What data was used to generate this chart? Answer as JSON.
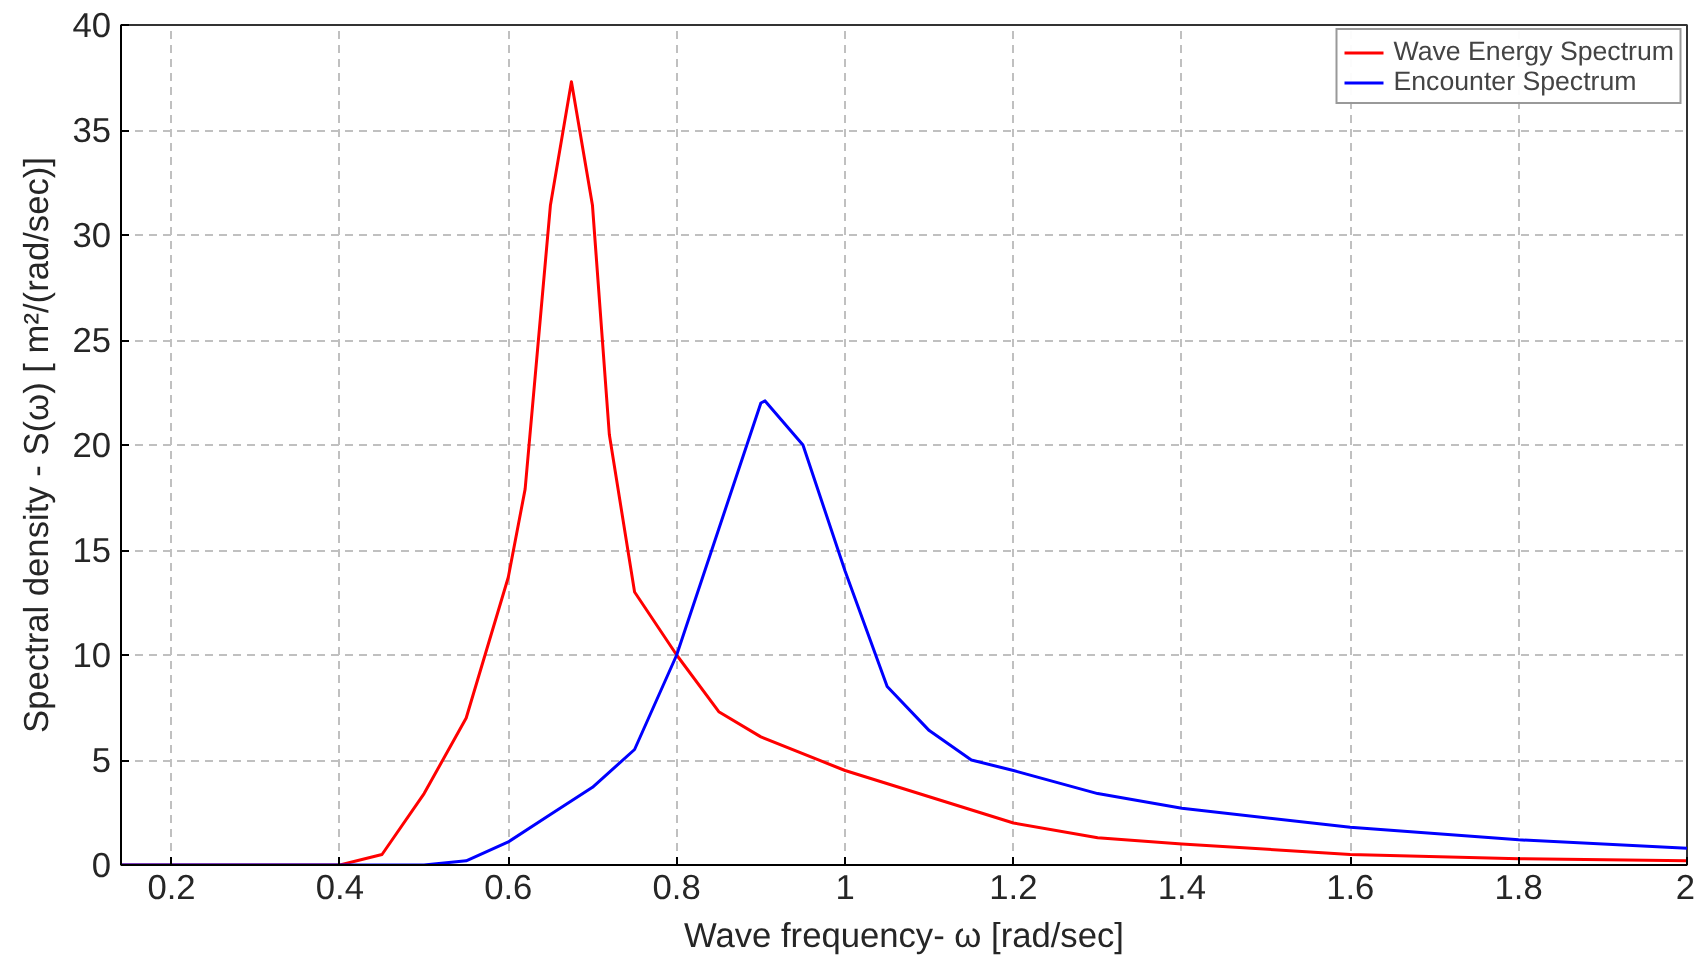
{
  "chart_data": {
    "type": "line",
    "xlabel": "Wave frequency- ω [rad/sec]",
    "ylabel": "Spectral density - S(ω) [ m²/(rad/sec)]",
    "xlim": [
      0.14,
      2
    ],
    "ylim": [
      0,
      40
    ],
    "xticks": [
      0.2,
      0.4,
      0.6,
      0.8,
      1,
      1.2,
      1.4,
      1.6,
      1.8,
      2
    ],
    "yticks": [
      0,
      5,
      10,
      15,
      20,
      25,
      30,
      35,
      40
    ],
    "grid": true,
    "legend": "top right",
    "line_style": "solid",
    "series": [
      {
        "name": "Wave Energy Spectrum",
        "color": "#ff0000",
        "x": [
          0.14,
          0.4,
          0.45,
          0.5,
          0.55,
          0.6,
          0.62,
          0.65,
          0.675,
          0.7,
          0.72,
          0.75,
          0.8,
          0.85,
          0.9,
          1.0,
          1.2,
          1.3,
          1.4,
          1.6,
          1.8,
          2.0
        ],
        "values": [
          0,
          0,
          0.5,
          3.4,
          7,
          13.7,
          17.9,
          31.4,
          37.3,
          31.4,
          20.5,
          13,
          10,
          7.3,
          6.1,
          4.5,
          2,
          1.3,
          1.0,
          0.5,
          0.3,
          0.2
        ]
      },
      {
        "name": "Encounter Spectrum",
        "color": "#0000ff",
        "x": [
          0.14,
          0.5,
          0.55,
          0.6,
          0.65,
          0.7,
          0.75,
          0.8,
          0.85,
          0.9,
          0.905,
          0.95,
          1.0,
          1.05,
          1.1,
          1.15,
          1.2,
          1.3,
          1.4,
          1.6,
          1.8,
          2.0
        ],
        "values": [
          0,
          0,
          0.2,
          1.1,
          2.4,
          3.7,
          5.5,
          10,
          16,
          22,
          22.1,
          20,
          14,
          8.5,
          6.4,
          5,
          4.5,
          3.4,
          2.7,
          1.8,
          1.2,
          0.8
        ]
      }
    ]
  }
}
